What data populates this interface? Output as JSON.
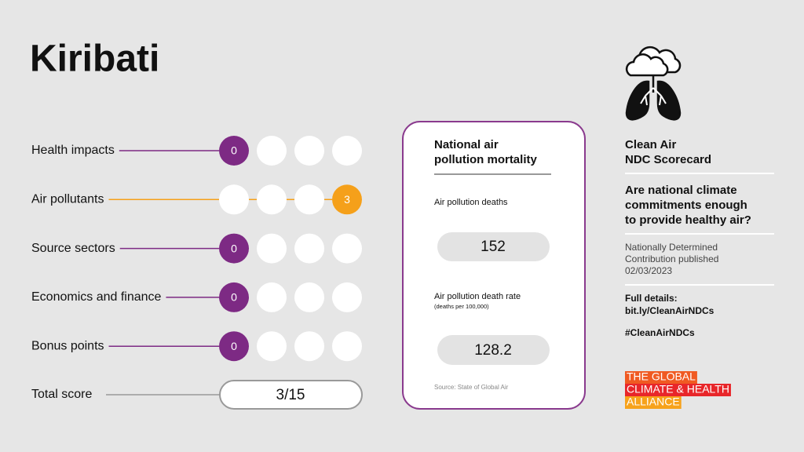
{
  "header": {
    "title": "Kiribati"
  },
  "scores": {
    "rows": [
      {
        "label": "Health impacts",
        "score": 0,
        "color": "#7d2a84"
      },
      {
        "label": "Air pollutants",
        "score": 3,
        "color": "#f5a01a"
      },
      {
        "label": "Source sectors",
        "score": 0,
        "color": "#7d2a84"
      },
      {
        "label": "Economics and finance",
        "score": 0,
        "color": "#7d2a84"
      },
      {
        "label": "Bonus points",
        "score": 0,
        "color": "#7d2a84"
      }
    ],
    "total": {
      "label": "Total score",
      "value": "3/15"
    }
  },
  "card": {
    "title": [
      "National air",
      "pollution mortality"
    ],
    "deaths": {
      "label": "Air pollution deaths",
      "value": 152
    },
    "rate": {
      "label": "Air pollution death rate",
      "note": "(deaths per 100,000)",
      "value": 128.2
    },
    "source": "Source: State of Global Air"
  },
  "sidebar": {
    "title": [
      "Clean Air",
      "NDC Scorecard"
    ],
    "question": [
      "Are national climate",
      "commitments enough",
      "to provide healthy air?"
    ],
    "published": [
      "Nationally Determined",
      "Contribution published",
      "02/03/2023"
    ],
    "details": [
      "Full details:",
      "bit.ly/CleanAirNDCs"
    ],
    "hashtag": "#CleanAirNDCs",
    "logo": [
      "THE GLOBAL",
      "CLIMATE & HEALTH",
      "ALLIANCE"
    ]
  }
}
